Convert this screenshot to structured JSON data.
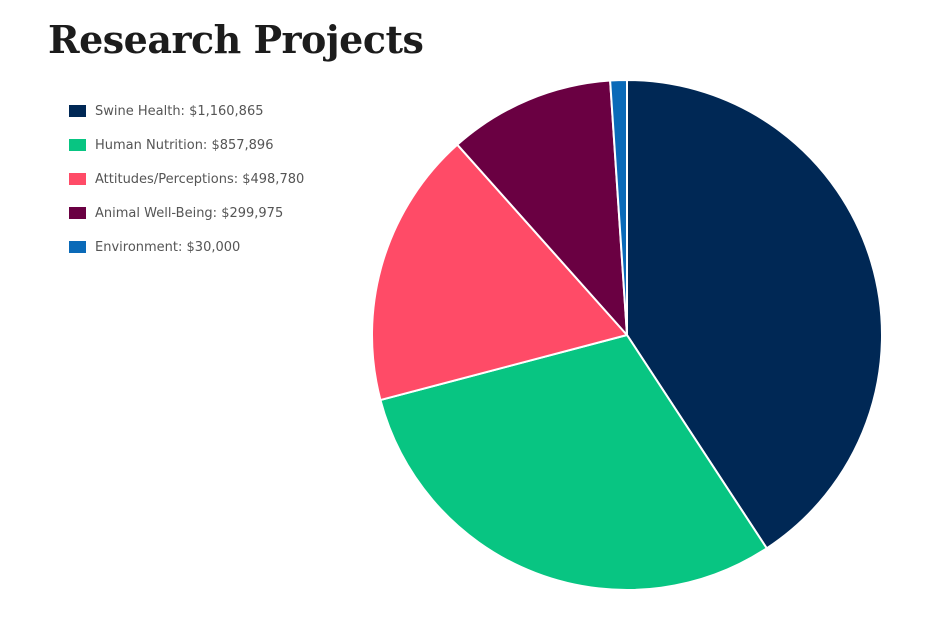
{
  "page": {
    "title": "Research Projects"
  },
  "chart_data": {
    "type": "pie",
    "title": "Research Projects",
    "legend_position": "top-left",
    "start_angle": "12 o'clock",
    "direction": "clockwise",
    "slices": [
      {
        "label": "Swine Health: $1,160,865",
        "category": "Swine Health",
        "value": 1160865,
        "color": "#002855"
      },
      {
        "label": "Human Nutrition: $857,896",
        "category": "Human Nutrition",
        "value": 857896,
        "color": "#08c582"
      },
      {
        "label": "Attitudes/Perceptions: $498,780",
        "category": "Attitudes/Perceptions",
        "value": 498780,
        "color": "#ff4b67"
      },
      {
        "label": "Animal Well-Being: $299,975",
        "category": "Animal Well-Being",
        "value": 299975,
        "color": "#6a0042"
      },
      {
        "label": "Environment: $30,000",
        "category": "Environment",
        "value": 30000,
        "color": "#0a6ab8"
      }
    ]
  }
}
